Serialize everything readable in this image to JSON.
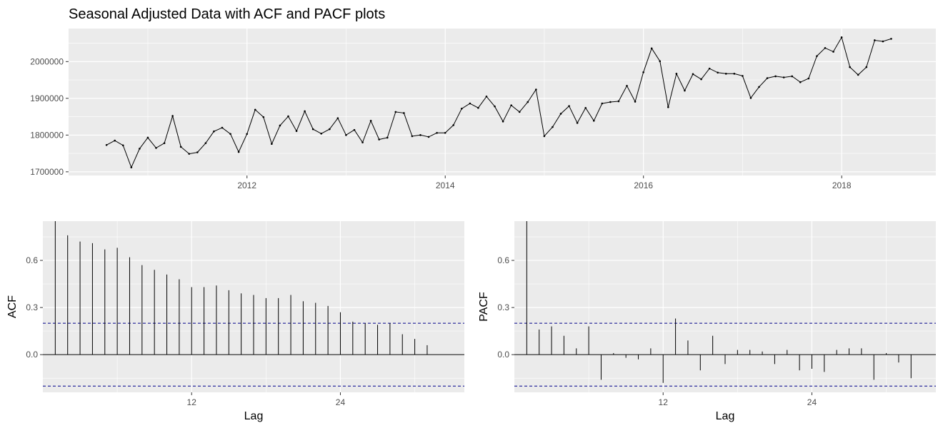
{
  "title": "Seasonal Adjusted Data with ACF and PACF plots",
  "colors": {
    "panel": "#ebebeb",
    "grid": "#ffffff",
    "line": "#000000",
    "conf": "#00008b"
  },
  "chart_data": [
    {
      "type": "line",
      "xlabel": "",
      "ylabel": "",
      "xlim": [
        2010.2,
        2018.95
      ],
      "ylim": [
        1690000,
        2090000
      ],
      "xticks": [
        2012,
        2014,
        2016,
        2018
      ],
      "xtick_labels": [
        "2012",
        "2014",
        "2016",
        "2018"
      ],
      "yticks": [
        1700000,
        1800000,
        1900000,
        2000000
      ],
      "ytick_labels": [
        "1700000",
        "1800000",
        "1900000",
        "2000000"
      ],
      "x_start": 2010.583,
      "x_step": 0.08333,
      "points": "point",
      "values": [
        1773000,
        1785000,
        1772000,
        1712000,
        1763000,
        1793000,
        1765000,
        1778000,
        1852000,
        1768000,
        1749000,
        1753000,
        1778000,
        1810000,
        1820000,
        1803000,
        1754000,
        1803000,
        1869000,
        1849000,
        1776000,
        1826000,
        1851000,
        1811000,
        1865000,
        1816000,
        1804000,
        1816000,
        1846000,
        1800000,
        1814000,
        1780000,
        1839000,
        1788000,
        1793000,
        1863000,
        1860000,
        1797000,
        1800000,
        1795000,
        1806000,
        1806000,
        1827000,
        1872000,
        1886000,
        1874000,
        1905000,
        1878000,
        1837000,
        1881000,
        1863000,
        1890000,
        1924000,
        1797000,
        1822000,
        1858000,
        1879000,
        1833000,
        1874000,
        1839000,
        1886000,
        1890000,
        1892000,
        1934000,
        1891000,
        1971000,
        2036000,
        2001000,
        1876000,
        1967000,
        1921000,
        1966000,
        1952000,
        1981000,
        1970000,
        1967000,
        1967000,
        1961000,
        1901000,
        1931000,
        1955000,
        1960000,
        1957000,
        1960000,
        1944000,
        1954000,
        2015000,
        2037000,
        2027000,
        2066000,
        1985000,
        1964000,
        1985000,
        2058000,
        2055000,
        2062000
      ]
    },
    {
      "type": "bar",
      "xlabel": "Lag",
      "ylabel": "ACF",
      "xlim": [
        0,
        34
      ],
      "ylim": [
        -0.24,
        0.85
      ],
      "xticks": [
        12,
        24
      ],
      "xtick_labels": [
        "12",
        "24"
      ],
      "yticks": [
        0.0,
        0.3,
        0.6
      ],
      "ytick_labels": [
        "0.0",
        "0.3",
        "0.6"
      ],
      "conf_limit": 0.2,
      "lags": [
        1,
        2,
        3,
        4,
        5,
        6,
        7,
        8,
        9,
        10,
        11,
        12,
        13,
        14,
        15,
        16,
        17,
        18,
        19,
        20,
        21,
        22,
        23,
        24,
        25,
        26,
        27,
        28,
        29,
        30,
        31,
        32
      ],
      "values": [
        0.85,
        0.76,
        0.72,
        0.71,
        0.67,
        0.68,
        0.62,
        0.57,
        0.54,
        0.51,
        0.48,
        0.43,
        0.43,
        0.44,
        0.41,
        0.39,
        0.38,
        0.36,
        0.36,
        0.38,
        0.34,
        0.33,
        0.31,
        0.27,
        0.21,
        0.2,
        0.19,
        0.2,
        0.13,
        0.1,
        0.06,
        0.0
      ]
    },
    {
      "type": "bar",
      "xlabel": "Lag",
      "ylabel": "PACF",
      "xlim": [
        0,
        34
      ],
      "ylim": [
        -0.24,
        0.85
      ],
      "xticks": [
        12,
        24
      ],
      "xtick_labels": [
        "12",
        "24"
      ],
      "yticks": [
        0.0,
        0.3,
        0.6
      ],
      "ytick_labels": [
        "0.0",
        "0.3",
        "0.6"
      ],
      "conf_limit": 0.2,
      "lags": [
        1,
        2,
        3,
        4,
        5,
        6,
        7,
        8,
        9,
        10,
        11,
        12,
        13,
        14,
        15,
        16,
        17,
        18,
        19,
        20,
        21,
        22,
        23,
        24,
        25,
        26,
        27,
        28,
        29,
        30,
        31,
        32
      ],
      "values": [
        0.85,
        0.16,
        0.18,
        0.12,
        0.04,
        0.18,
        -0.16,
        0.01,
        -0.02,
        -0.03,
        0.04,
        -0.18,
        0.23,
        0.09,
        -0.1,
        0.12,
        -0.06,
        0.03,
        0.03,
        0.02,
        -0.06,
        0.03,
        -0.1,
        -0.09,
        -0.11,
        0.03,
        0.04,
        0.04,
        -0.16,
        0.01,
        -0.05,
        -0.15
      ]
    }
  ]
}
